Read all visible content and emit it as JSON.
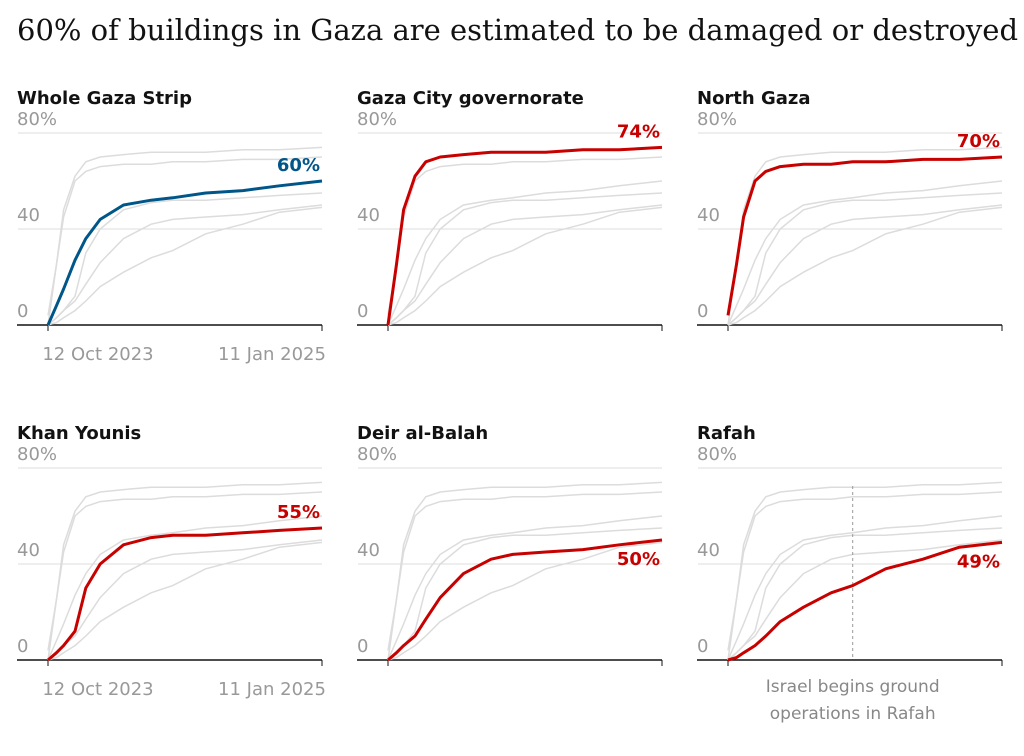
{
  "chart_data": {
    "type": "line",
    "title": "60% of buildings in Gaza are estimated to be damaged or destroyed",
    "x": [
      "2023-10-12",
      "2023-10-26",
      "2023-11-07",
      "2023-11-26",
      "2023-12-14",
      "2024-01-07",
      "2024-02-15",
      "2024-04-01",
      "2024-05-07",
      "2024-07-01",
      "2024-09-01",
      "2024-11-01",
      "2025-01-11"
    ],
    "xlim": [
      "2023-10-12",
      "2025-01-11"
    ],
    "xticks": [
      {
        "value": "2023-10-12",
        "label": "12 Oct 2023"
      },
      {
        "value": "2025-01-11",
        "label": "11 Jan 2025"
      }
    ],
    "ylim": [
      0,
      80
    ],
    "yticks": [
      0,
      40,
      {
        "value": 80,
        "label": "80%"
      }
    ],
    "grid": true,
    "series": [
      {
        "name": "Whole Gaza Strip",
        "color": "#005689",
        "values": [
          0,
          8,
          15,
          27,
          36,
          44,
          50,
          52,
          53,
          55,
          56,
          58,
          60
        ],
        "value_labels": [
          null,
          null,
          null,
          null,
          null,
          null,
          null,
          null,
          null,
          null,
          null,
          null,
          "60%"
        ]
      },
      {
        "name": "Gaza City governorate",
        "color": "#c70000",
        "values": [
          0,
          25,
          48,
          62,
          68,
          70,
          71,
          72,
          72,
          72,
          73,
          73,
          74
        ],
        "value_labels": [
          null,
          null,
          null,
          null,
          null,
          null,
          null,
          null,
          null,
          null,
          null,
          null,
          "74%"
        ]
      },
      {
        "name": "North Gaza",
        "color": "#c70000",
        "values": [
          4,
          25,
          45,
          60,
          64,
          66,
          67,
          67,
          68,
          68,
          69,
          69,
          70
        ],
        "value_labels": [
          null,
          null,
          null,
          null,
          null,
          null,
          null,
          null,
          null,
          null,
          null,
          null,
          "70%"
        ]
      },
      {
        "name": "Khan Younis",
        "color": "#c70000",
        "values": [
          0,
          3,
          6,
          12,
          30,
          40,
          48,
          51,
          52,
          52,
          53,
          54,
          55
        ],
        "value_labels": [
          null,
          null,
          null,
          null,
          null,
          null,
          null,
          null,
          null,
          null,
          null,
          null,
          "55%"
        ]
      },
      {
        "name": "Deir al-Balah",
        "color": "#c70000",
        "values": [
          0,
          3,
          6,
          10,
          17,
          26,
          36,
          42,
          44,
          45,
          46,
          48,
          50
        ],
        "value_labels": [
          null,
          null,
          null,
          null,
          null,
          null,
          null,
          null,
          null,
          null,
          null,
          null,
          "50%"
        ]
      },
      {
        "name": "Rafah",
        "color": "#c70000",
        "values": [
          0,
          1,
          3,
          6,
          10,
          16,
          22,
          28,
          31,
          38,
          42,
          47,
          49
        ],
        "value_labels": [
          null,
          null,
          null,
          null,
          null,
          null,
          null,
          null,
          null,
          null,
          null,
          null,
          "49%"
        ]
      }
    ],
    "annotations": [
      {
        "x": "2024-05-07",
        "series": "Rafah",
        "text": "Israel begins ground operations in Rafah"
      }
    ]
  }
}
